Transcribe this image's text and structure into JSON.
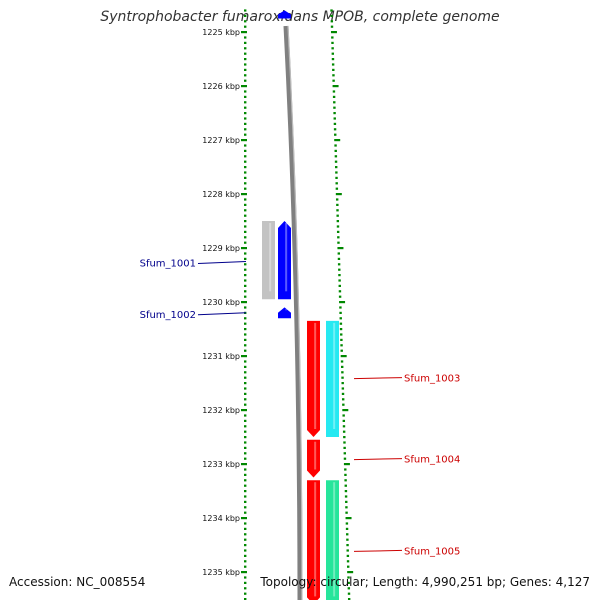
{
  "title": "Syntrophobacter fumaroxidans MPOB, complete genome",
  "footer": {
    "accession": "Accession: NC_008554",
    "topology": "Topology: circular; Length: 4,990,251 bp; Genes: 4,127"
  },
  "colors": {
    "backbone": "#808080",
    "tick": "#008800",
    "plus_strand_label": "#00008b",
    "minus_strand_label": "#cc0000",
    "cds_plus": "#0000ff",
    "cds_minus": "#ff0000",
    "gene_plus": "#b8b8b8",
    "gene_minus_a": "#00e5ee",
    "gene_minus_b": "#00e08a"
  },
  "map": {
    "start_kbp": 1224.6,
    "end_kbp": 1235.6,
    "tick_labels": [
      {
        "kbp": 1225,
        "label": "1225 kbp"
      },
      {
        "kbp": 1226,
        "label": "1226 kbp"
      },
      {
        "kbp": 1227,
        "label": "1227 kbp"
      },
      {
        "kbp": 1228,
        "label": "1228 kbp"
      },
      {
        "kbp": 1229,
        "label": "1229 kbp"
      },
      {
        "kbp": 1230,
        "label": "1230 kbp"
      },
      {
        "kbp": 1231,
        "label": "1231 kbp"
      },
      {
        "kbp": 1232,
        "label": "1232 kbp"
      },
      {
        "kbp": 1233,
        "label": "1233 kbp"
      },
      {
        "kbp": 1234,
        "label": "1234 kbp"
      },
      {
        "kbp": 1235,
        "label": "1235 kbp"
      }
    ],
    "features": [
      {
        "track": "cds_plus",
        "start": 1224.6,
        "end": 1224.75,
        "strand": "+",
        "color": "cds_plus"
      },
      {
        "track": "gene_plus",
        "start": 1228.5,
        "end": 1229.95,
        "strand": "+",
        "color": "gene_plus"
      },
      {
        "track": "cds_plus",
        "start": 1228.5,
        "end": 1229.95,
        "strand": "+",
        "color": "cds_plus"
      },
      {
        "track": "cds_plus",
        "start": 1230.1,
        "end": 1230.3,
        "strand": "+",
        "color": "cds_plus"
      },
      {
        "track": "cds_minus",
        "start": 1230.35,
        "end": 1232.5,
        "strand": "-",
        "color": "cds_minus"
      },
      {
        "track": "gene_minus",
        "start": 1230.35,
        "end": 1232.5,
        "strand": "-",
        "color": "gene_minus_a"
      },
      {
        "track": "cds_minus",
        "start": 1232.55,
        "end": 1233.25,
        "strand": "-",
        "color": "cds_minus"
      },
      {
        "track": "cds_minus",
        "start": 1233.3,
        "end": 1235.6,
        "strand": "-",
        "color": "cds_minus"
      },
      {
        "track": "gene_minus",
        "start": 1233.3,
        "end": 1235.6,
        "strand": "-",
        "color": "gene_minus_b"
      }
    ],
    "gene_labels": [
      {
        "name": "Sfum_1001",
        "kbp": 1229.25,
        "side": "left"
      },
      {
        "name": "Sfum_1002",
        "kbp": 1230.2,
        "side": "left"
      },
      {
        "name": "Sfum_1003",
        "kbp": 1231.4,
        "side": "right"
      },
      {
        "name": "Sfum_1004",
        "kbp": 1232.9,
        "side": "right"
      },
      {
        "name": "Sfum_1005",
        "kbp": 1234.6,
        "side": "right"
      }
    ]
  }
}
